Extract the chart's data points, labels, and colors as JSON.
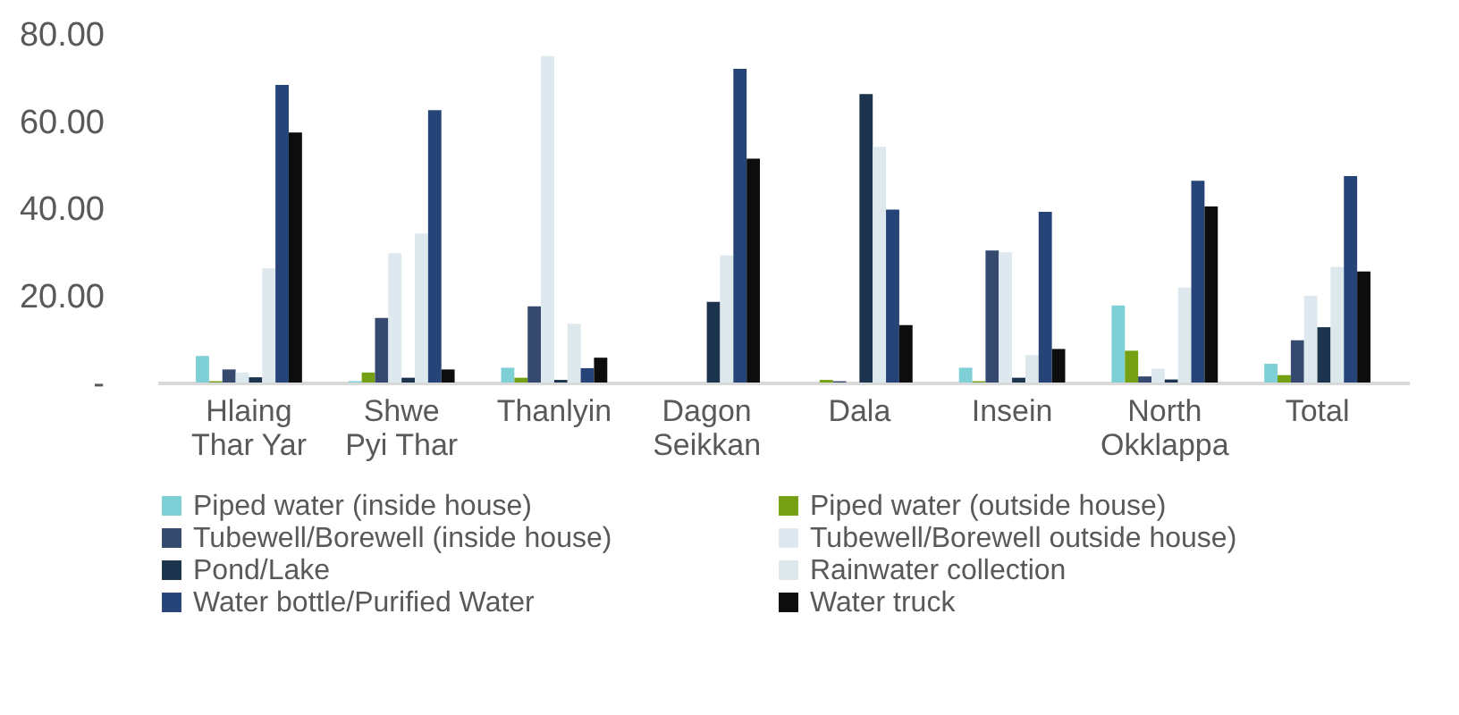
{
  "chart_data": {
    "type": "bar",
    "categories": [
      "Hlaing Thar Yar",
      "Shwe Pyi Thar",
      "Thanlyin",
      "Dagon Seikkan",
      "Dala",
      "Insein",
      "North Okklappa",
      "Total"
    ],
    "series": [
      {
        "name": "Piped water (inside house)",
        "color": "#7fcfd6",
        "values": [
          6.1,
          0.3,
          3.4,
          0,
          0,
          3.4,
          17.7,
          4.3
        ]
      },
      {
        "name": "Piped water (outside house)",
        "color": "#76a014",
        "values": [
          0.3,
          2.3,
          1.1,
          0,
          0.6,
          0.3,
          7.3,
          1.7
        ]
      },
      {
        "name": "Tubewell/Borewell (inside house)",
        "color": "#354a6e",
        "values": [
          3.0,
          14.8,
          17.5,
          0,
          0.3,
          30.3,
          1.4,
          9.7
        ]
      },
      {
        "name": "Tubewell/Borewell outside house)",
        "color": "#dde9ee",
        "values": [
          2.3,
          29.7,
          74.9,
          0,
          0,
          29.9,
          3.2,
          19.9
        ]
      },
      {
        "name": "Pond/Lake",
        "color": "#1c344e",
        "values": [
          1.2,
          1.1,
          0.6,
          18.5,
          66.2,
          1.1,
          0.7,
          12.7
        ]
      },
      {
        "name": "Rainwater collection",
        "color": "#dce8ec",
        "values": [
          26.2,
          34.2,
          13.5,
          29.2,
          54.1,
          6.3,
          21.8,
          26.5
        ]
      },
      {
        "name": "Water bottle/Purified Water",
        "color": "#264478",
        "values": [
          68.3,
          62.5,
          3.3,
          72.0,
          39.7,
          39.2,
          46.3,
          47.4
        ]
      },
      {
        "name": "Water truck",
        "color": "#0d0d0d",
        "values": [
          57.4,
          3.0,
          5.7,
          51.4,
          13.2,
          7.7,
          40.4,
          25.5
        ]
      }
    ],
    "ylim": [
      0,
      80
    ],
    "yticks": [
      {
        "value": 0,
        "label": "-"
      },
      {
        "value": 20,
        "label": "20.00"
      },
      {
        "value": 40,
        "label": "40.00"
      },
      {
        "value": 60,
        "label": "60.00"
      },
      {
        "value": 80,
        "label": "80.00"
      }
    ],
    "grid": false,
    "legend": "bottom"
  }
}
